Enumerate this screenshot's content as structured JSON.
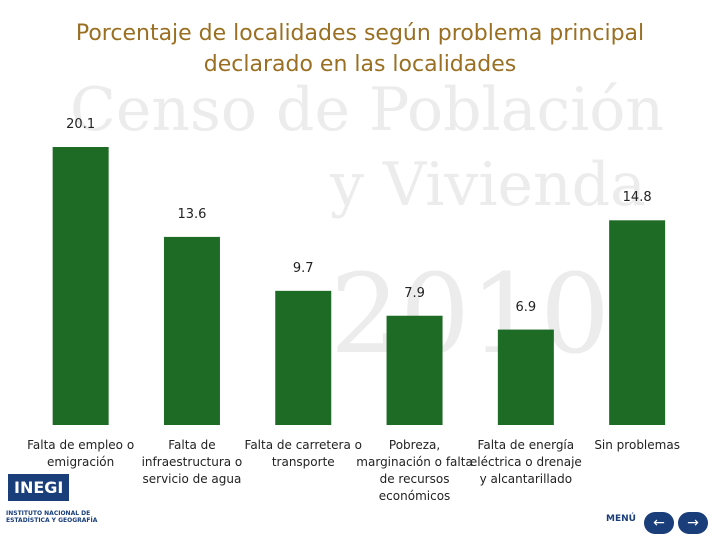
{
  "watermark": [
    "Censo de Población",
    "y Vivienda",
    "2010"
  ],
  "chart_data": {
    "type": "bar",
    "title": "Porcentaje de localidades según problema principal declarado en las localidades",
    "categories": [
      "Falta de empleo o emigración",
      "Falta de infraestructura o servicio de agua",
      "Falta de carretera o transporte",
      "Pobreza, marginación o falta de recursos económicos",
      "Falta de energía eléctrica o drenaje y alcantarillado",
      "Sin problemas"
    ],
    "values": [
      20.1,
      13.6,
      9.7,
      7.9,
      6.9,
      14.8
    ],
    "color": "#1e6b25"
  },
  "footer": {
    "logo": "INEGI",
    "institute": "INSTITUTO NACIONAL DE ESTADÍSTICA Y GEOGRAFÍA",
    "menu": "MENÚ",
    "back": "←",
    "forward": "→"
  }
}
